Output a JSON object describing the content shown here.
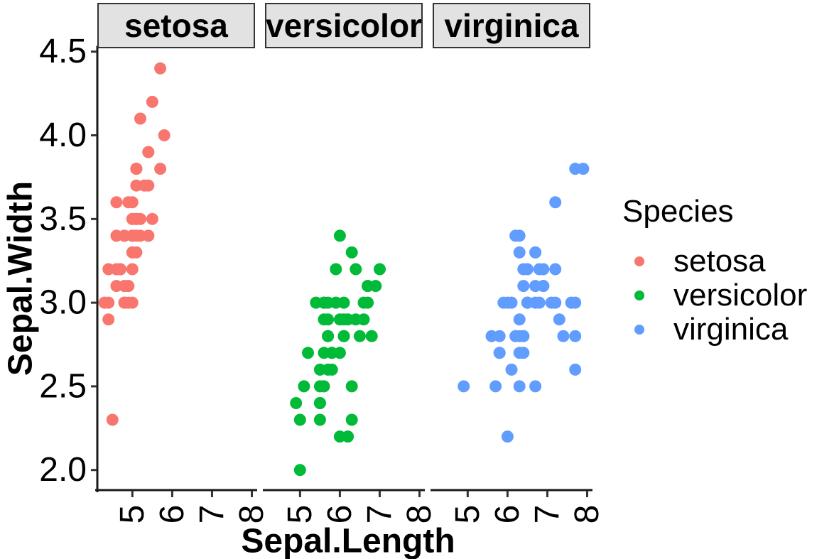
{
  "chart_data": {
    "type": "scatter",
    "title": "",
    "xlabel": "Sepal.Length",
    "ylabel": "Sepal.Width",
    "legend_title": "Species",
    "legend_position": "right",
    "grid": false,
    "facets": [
      "setosa",
      "versicolor",
      "virginica"
    ],
    "x_ticks": [
      "5",
      "6",
      "7",
      "8"
    ],
    "y_ticks": [
      "2.0",
      "2.5",
      "3.0",
      "3.5",
      "4.0",
      "4.5"
    ],
    "xlim": [
      4.12,
      8.08
    ],
    "ylim": [
      1.88,
      4.52
    ],
    "strip_fill": "#E2E2E2",
    "series": [
      {
        "name": "setosa",
        "color": "#F8766D",
        "points": [
          [
            5.1,
            3.5
          ],
          [
            4.9,
            3.0
          ],
          [
            4.7,
            3.2
          ],
          [
            4.6,
            3.1
          ],
          [
            5.0,
            3.6
          ],
          [
            5.4,
            3.9
          ],
          [
            4.6,
            3.4
          ],
          [
            5.0,
            3.4
          ],
          [
            4.4,
            2.9
          ],
          [
            4.9,
            3.1
          ],
          [
            5.4,
            3.7
          ],
          [
            4.8,
            3.4
          ],
          [
            4.8,
            3.0
          ],
          [
            4.3,
            3.0
          ],
          [
            5.8,
            4.0
          ],
          [
            5.7,
            4.4
          ],
          [
            5.4,
            3.9
          ],
          [
            5.1,
            3.5
          ],
          [
            5.7,
            3.8
          ],
          [
            5.1,
            3.8
          ],
          [
            5.4,
            3.4
          ],
          [
            5.1,
            3.7
          ],
          [
            4.6,
            3.6
          ],
          [
            5.1,
            3.3
          ],
          [
            4.8,
            3.4
          ],
          [
            5.0,
            3.0
          ],
          [
            5.0,
            3.4
          ],
          [
            5.2,
            3.5
          ],
          [
            5.2,
            3.4
          ],
          [
            4.7,
            3.2
          ],
          [
            4.8,
            3.1
          ],
          [
            5.4,
            3.4
          ],
          [
            5.2,
            4.1
          ],
          [
            5.5,
            4.2
          ],
          [
            4.9,
            3.1
          ],
          [
            5.0,
            3.2
          ],
          [
            5.5,
            3.5
          ],
          [
            4.9,
            3.6
          ],
          [
            4.4,
            3.0
          ],
          [
            5.1,
            3.4
          ],
          [
            5.0,
            3.5
          ],
          [
            4.5,
            2.3
          ],
          [
            4.4,
            3.2
          ],
          [
            5.0,
            3.5
          ],
          [
            5.1,
            3.8
          ],
          [
            4.8,
            3.0
          ],
          [
            5.1,
            3.8
          ],
          [
            4.6,
            3.2
          ],
          [
            5.3,
            3.7
          ],
          [
            5.0,
            3.3
          ]
        ]
      },
      {
        "name": "versicolor",
        "color": "#00BA38",
        "points": [
          [
            7.0,
            3.2
          ],
          [
            6.4,
            3.2
          ],
          [
            6.9,
            3.1
          ],
          [
            5.5,
            2.3
          ],
          [
            6.5,
            2.8
          ],
          [
            5.7,
            2.8
          ],
          [
            6.3,
            3.3
          ],
          [
            4.9,
            2.4
          ],
          [
            6.6,
            2.9
          ],
          [
            5.2,
            2.7
          ],
          [
            5.0,
            2.0
          ],
          [
            5.9,
            3.0
          ],
          [
            6.0,
            2.2
          ],
          [
            6.1,
            2.9
          ],
          [
            5.6,
            2.9
          ],
          [
            6.7,
            3.1
          ],
          [
            5.6,
            3.0
          ],
          [
            5.8,
            2.7
          ],
          [
            6.2,
            2.2
          ],
          [
            5.6,
            2.5
          ],
          [
            5.9,
            3.2
          ],
          [
            6.1,
            2.8
          ],
          [
            6.3,
            2.5
          ],
          [
            6.1,
            2.8
          ],
          [
            6.4,
            2.9
          ],
          [
            6.6,
            3.0
          ],
          [
            6.8,
            2.8
          ],
          [
            6.7,
            3.0
          ],
          [
            6.0,
            2.9
          ],
          [
            5.7,
            2.6
          ],
          [
            5.5,
            2.4
          ],
          [
            5.5,
            2.4
          ],
          [
            5.8,
            2.7
          ],
          [
            6.0,
            2.7
          ],
          [
            5.4,
            3.0
          ],
          [
            6.0,
            3.4
          ],
          [
            6.7,
            3.1
          ],
          [
            6.3,
            2.3
          ],
          [
            5.6,
            3.0
          ],
          [
            5.5,
            2.5
          ],
          [
            5.5,
            2.6
          ],
          [
            6.1,
            3.0
          ],
          [
            5.8,
            2.6
          ],
          [
            5.0,
            2.3
          ],
          [
            5.6,
            2.7
          ],
          [
            5.7,
            3.0
          ],
          [
            5.7,
            2.9
          ],
          [
            6.2,
            2.9
          ],
          [
            5.1,
            2.5
          ],
          [
            5.7,
            2.8
          ]
        ]
      },
      {
        "name": "virginica",
        "color": "#619CFF",
        "points": [
          [
            6.3,
            3.3
          ],
          [
            5.8,
            2.7
          ],
          [
            7.1,
            3.0
          ],
          [
            6.3,
            2.9
          ],
          [
            6.5,
            3.0
          ],
          [
            7.6,
            3.0
          ],
          [
            4.9,
            2.5
          ],
          [
            7.3,
            2.9
          ],
          [
            6.7,
            2.5
          ],
          [
            7.2,
            3.6
          ],
          [
            6.5,
            3.2
          ],
          [
            6.4,
            2.7
          ],
          [
            6.8,
            3.0
          ],
          [
            5.7,
            2.5
          ],
          [
            5.8,
            2.8
          ],
          [
            6.4,
            3.2
          ],
          [
            6.5,
            3.0
          ],
          [
            7.7,
            3.8
          ],
          [
            7.7,
            2.6
          ],
          [
            6.0,
            2.2
          ],
          [
            6.9,
            3.2
          ],
          [
            5.6,
            2.8
          ],
          [
            7.7,
            2.8
          ],
          [
            6.3,
            2.7
          ],
          [
            6.7,
            3.3
          ],
          [
            7.2,
            3.2
          ],
          [
            6.2,
            2.8
          ],
          [
            6.1,
            3.0
          ],
          [
            6.4,
            2.8
          ],
          [
            7.2,
            3.0
          ],
          [
            7.4,
            2.8
          ],
          [
            7.9,
            3.8
          ],
          [
            6.4,
            2.8
          ],
          [
            6.3,
            2.8
          ],
          [
            6.1,
            2.6
          ],
          [
            7.7,
            3.0
          ],
          [
            6.3,
            3.4
          ],
          [
            6.4,
            3.1
          ],
          [
            6.0,
            3.0
          ],
          [
            6.9,
            3.1
          ],
          [
            6.7,
            3.1
          ],
          [
            6.9,
            3.1
          ],
          [
            5.8,
            2.7
          ],
          [
            6.8,
            3.2
          ],
          [
            6.7,
            3.3
          ],
          [
            6.7,
            3.0
          ],
          [
            6.3,
            2.5
          ],
          [
            6.5,
            3.0
          ],
          [
            6.2,
            3.4
          ],
          [
            5.9,
            3.0
          ]
        ]
      }
    ]
  }
}
